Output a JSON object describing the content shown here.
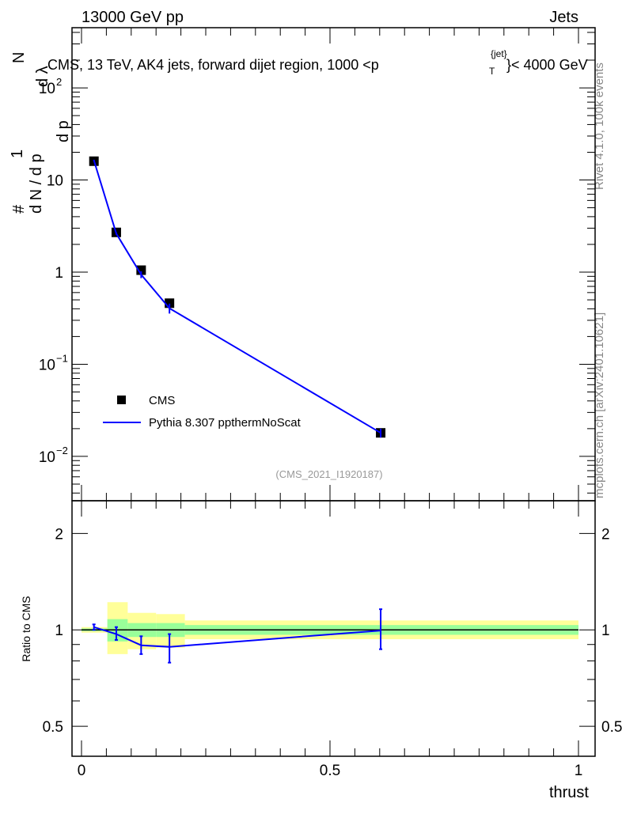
{
  "header": {
    "left": "13000 GeV pp",
    "right": "Jets"
  },
  "side_text": {
    "rivet": "Rivet 4.1.0,  100k events",
    "mcplots": "mcplots.cern.ch [arXiv:2401.10621]"
  },
  "chart_data": [
    {
      "type": "scatter",
      "title": "CMS, 13 TeV, AK4 jets, forward dijet region, 1000 < p_T^{jet} < 4000 GeV",
      "title_parts": {
        "main": "CMS, 13 TeV, AK4 jets, forward dijet region, 1000 <p",
        "sup": "{jet}",
        "sub": "T",
        "tail": "}< 4000 GeV"
      },
      "ylabel": "1/(dN/dp_T) d²N/(dp_T dλ)",
      "ylabel_parts": {
        "a": "1",
        "b": "d N / d p",
        "c": "d",
        "d": "N",
        "e": "d p",
        "f": "d λ",
        "hash": "#",
        "two": "2",
        "T": "T"
      },
      "yscale": "log",
      "ylim": [
        0.0033,
        450
      ],
      "xlim": [
        -0.02,
        1.03
      ],
      "yticks": [
        {
          "v": 0.01,
          "label": "10",
          "exp": "−2"
        },
        {
          "v": 0.1,
          "label": "10",
          "exp": "−1"
        },
        {
          "v": 1,
          "label": "1",
          "exp": ""
        },
        {
          "v": 10,
          "label": "10",
          "exp": ""
        },
        {
          "v": 100,
          "label": "10",
          "exp": "2"
        }
      ],
      "annotation": "(CMS_2021_I1920187)",
      "legend": {
        "placement": "lower-left",
        "entries": [
          "CMS",
          "Pythia 8.307 ppthermNoScat"
        ]
      },
      "series": [
        {
          "name": "CMS",
          "x": [
            0.025,
            0.07,
            0.12,
            0.177,
            0.602
          ],
          "y": [
            16,
            2.7,
            1.05,
            0.46,
            0.018
          ],
          "color": "#000000"
        },
        {
          "name": "Pythia 8.307 ppthermNoScat",
          "x": [
            0.025,
            0.07,
            0.12,
            0.177,
            0.602
          ],
          "y": [
            16.3,
            2.62,
            0.94,
            0.405,
            0.018
          ],
          "yerr": [
            0.3,
            0.08,
            0.08,
            0.05,
            0.002
          ],
          "color": "#0000ff"
        }
      ]
    },
    {
      "type": "line",
      "ylabel": "Ratio to CMS",
      "xlabel": "thrust",
      "yscale": "log",
      "ylim": [
        0.403,
        2.53
      ],
      "yticks": [
        {
          "v": 0.5,
          "label": "0.5"
        },
        {
          "v": 1,
          "label": "1"
        },
        {
          "v": 2,
          "label": "2"
        }
      ],
      "xticks": [
        {
          "v": 0,
          "label": "0"
        },
        {
          "v": 0.5,
          "label": "0.5"
        },
        {
          "v": 1,
          "label": "1"
        }
      ],
      "bin_edges": [
        0,
        0.052,
        0.093,
        0.15,
        0.208,
        1.0
      ],
      "band_yellow": [
        [
          0.98,
          1.02
        ],
        [
          0.84,
          1.22
        ],
        [
          0.87,
          1.13
        ],
        [
          0.88,
          1.12
        ],
        [
          0.935,
          1.07
        ]
      ],
      "band_green": [
        [
          0.99,
          1.01
        ],
        [
          0.92,
          1.08
        ],
        [
          0.95,
          1.05
        ],
        [
          0.95,
          1.05
        ],
        [
          0.965,
          1.035
        ]
      ],
      "ratio": {
        "x": [
          0.025,
          0.07,
          0.12,
          0.177,
          0.602
        ],
        "y": [
          1.02,
          0.97,
          0.895,
          0.885,
          0.995
        ],
        "lo": [
          1.0,
          0.93,
          0.84,
          0.79,
          0.87
        ],
        "hi": [
          1.04,
          1.02,
          0.955,
          0.97,
          1.16
        ]
      },
      "colors": {
        "yellow": "#ffff99",
        "green": "#99ff99",
        "mc": "#0000ff"
      }
    }
  ]
}
